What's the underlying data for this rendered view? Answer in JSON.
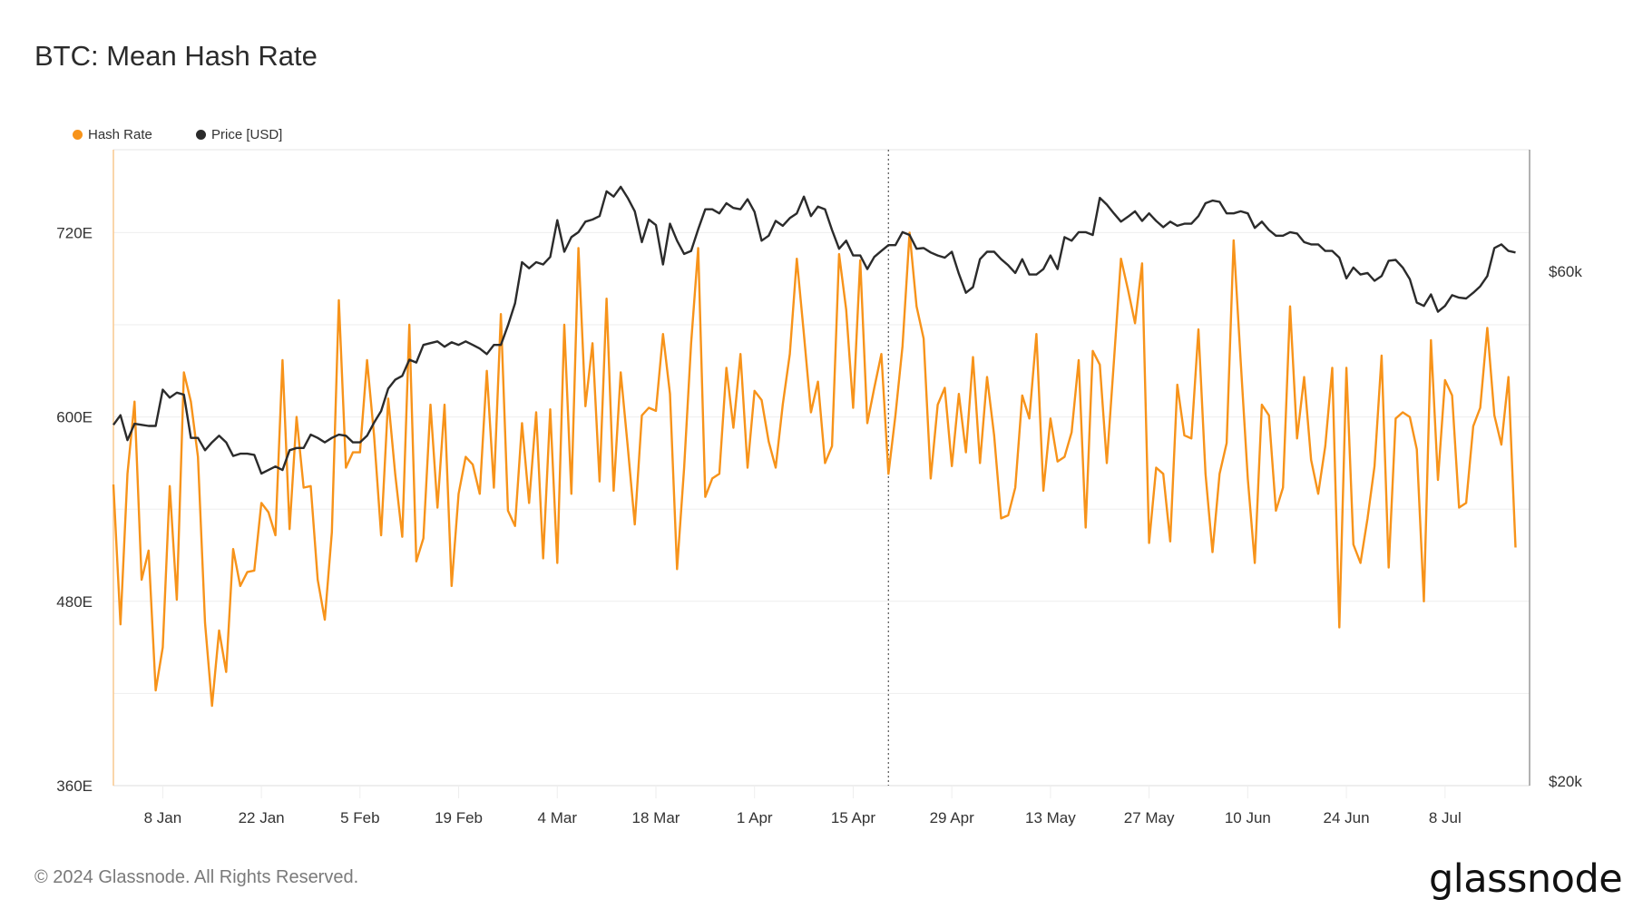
{
  "title": "BTC: Mean Hash Rate",
  "footer": "© 2024 Glassnode. All Rights Reserved.",
  "logo": "glassnode",
  "colors": {
    "hash_rate": "#f7931a",
    "price": "#2b2b2b"
  },
  "chart_data": {
    "type": "line",
    "title": "BTC: Mean Hash Rate",
    "x_start": "2024-01-01",
    "x_step": "1 day",
    "x_ticks": [
      "8 Jan",
      "22 Jan",
      "5 Feb",
      "19 Feb",
      "4 Mar",
      "18 Mar",
      "1 Apr",
      "15 Apr",
      "29 Apr",
      "13 May",
      "27 May",
      "10 Jun",
      "24 Jun",
      "8 Jul"
    ],
    "x_tick_dates": [
      "2024-01-08",
      "2024-01-22",
      "2024-02-05",
      "2024-02-19",
      "2024-03-04",
      "2024-03-18",
      "2024-04-01",
      "2024-04-15",
      "2024-04-29",
      "2024-05-13",
      "2024-05-27",
      "2024-06-10",
      "2024-06-24",
      "2024-07-08"
    ],
    "x_range": [
      "2024-01-01",
      "2024-07-20"
    ],
    "marker_date": "2024-04-20",
    "grid": true,
    "legend_placement": "top-left",
    "y_left": {
      "ticks": [
        360,
        480,
        600,
        720
      ],
      "tick_labels": [
        "360E",
        "480E",
        "600E",
        "720E"
      ],
      "range": [
        360,
        774
      ]
    },
    "y_right": {
      "scale": "log",
      "ticks": [
        20000,
        60000
      ],
      "tick_labels": [
        "$20k",
        "$60k"
      ],
      "range": [
        19800,
        78000
      ]
    },
    "series": [
      {
        "name": "Hash Rate",
        "axis": "left",
        "values": [
          556,
          465,
          563,
          610,
          494,
          513,
          422,
          450,
          555,
          481,
          629,
          610,
          574,
          466,
          412,
          461,
          434,
          514,
          490,
          499,
          500,
          544,
          538,
          523,
          637,
          527,
          600,
          554,
          555,
          494,
          468,
          525,
          676,
          567,
          577,
          577,
          637,
          588,
          523,
          612,
          563,
          522,
          660,
          506,
          521,
          608,
          541,
          608,
          490,
          550,
          574,
          569,
          550,
          630,
          554,
          667,
          539,
          529,
          596,
          544,
          603,
          508,
          605,
          505,
          660,
          550,
          710,
          607,
          648,
          558,
          677,
          552,
          629,
          581,
          530,
          601,
          606,
          604,
          654,
          615,
          501,
          567,
          648,
          710,
          548,
          560,
          563,
          632,
          593,
          641,
          567,
          617,
          611,
          584,
          567,
          608,
          641,
          703,
          654,
          603,
          623,
          570,
          581,
          706,
          670,
          606,
          702,
          596,
          619,
          641,
          563,
          601,
          646,
          720,
          672,
          651,
          560,
          608,
          619,
          568,
          615,
          577,
          639,
          570,
          626,
          588,
          534,
          536,
          554,
          614,
          599,
          654,
          552,
          599,
          571,
          574,
          590,
          637,
          528,
          643,
          634,
          570,
          636,
          703,
          683,
          661,
          700,
          518,
          567,
          563,
          519,
          621,
          588,
          586,
          657,
          563,
          512,
          563,
          583,
          715,
          636,
          560,
          505,
          608,
          601,
          539,
          554,
          672,
          586,
          626,
          572,
          550,
          581,
          632,
          463,
          632,
          517,
          505,
          534,
          568,
          640,
          502,
          599,
          603,
          600,
          579,
          480,
          650,
          559,
          624,
          614,
          541,
          544,
          594,
          606,
          658,
          601,
          582,
          626,
          515
        ]
      },
      {
        "name": "Price [USD]",
        "axis": "right",
        "values": [
          43100,
          44000,
          41700,
          43200,
          43100,
          43000,
          43000,
          46500,
          45700,
          46200,
          46000,
          41900,
          41900,
          40800,
          41500,
          42100,
          41500,
          40300,
          40500,
          40500,
          40400,
          38800,
          39100,
          39400,
          39100,
          40800,
          41000,
          41000,
          42200,
          41900,
          41500,
          41900,
          42200,
          42100,
          41500,
          41500,
          42100,
          43300,
          44400,
          46600,
          47500,
          47900,
          49600,
          49300,
          51200,
          51400,
          51600,
          51000,
          51500,
          51200,
          51600,
          51200,
          50800,
          50200,
          51200,
          51200,
          53400,
          56000,
          61200,
          60400,
          61200,
          60900,
          61900,
          67000,
          62600,
          64600,
          65300,
          66800,
          67100,
          67600,
          71300,
          70500,
          72000,
          70300,
          68300,
          63900,
          67100,
          66300,
          60900,
          66500,
          64100,
          62300,
          62700,
          65700,
          68600,
          68600,
          68000,
          69500,
          68800,
          68600,
          70100,
          68200,
          64100,
          64800,
          66900,
          66200,
          67300,
          68000,
          70500,
          67600,
          69000,
          68600,
          65600,
          63000,
          64100,
          62100,
          62100,
          60300,
          61900,
          62700,
          63500,
          63500,
          65300,
          64900,
          63000,
          63100,
          62500,
          62100,
          61800,
          62600,
          59700,
          57300,
          58000,
          61600,
          62600,
          62600,
          61600,
          60800,
          59800,
          61600,
          59600,
          59600,
          60300,
          62100,
          60300,
          64600,
          64100,
          65300,
          65300,
          64900,
          70300,
          69300,
          68000,
          66800,
          67500,
          68300,
          66900,
          68000,
          66900,
          66000,
          66800,
          66200,
          66500,
          66500,
          67600,
          69500,
          69900,
          69700,
          68000,
          68000,
          68300,
          68000,
          65900,
          66800,
          65600,
          64800,
          64800,
          65300,
          65100,
          63900,
          63600,
          63600,
          62700,
          62700,
          61800,
          59100,
          60500,
          59600,
          59800,
          58800,
          59400,
          61400,
          61500,
          60500,
          59000,
          56100,
          55700,
          57100,
          55000,
          55700,
          57000,
          56700,
          56600,
          57300,
          58100,
          59400,
          63100,
          63600,
          62700,
          62500
        ]
      }
    ]
  }
}
